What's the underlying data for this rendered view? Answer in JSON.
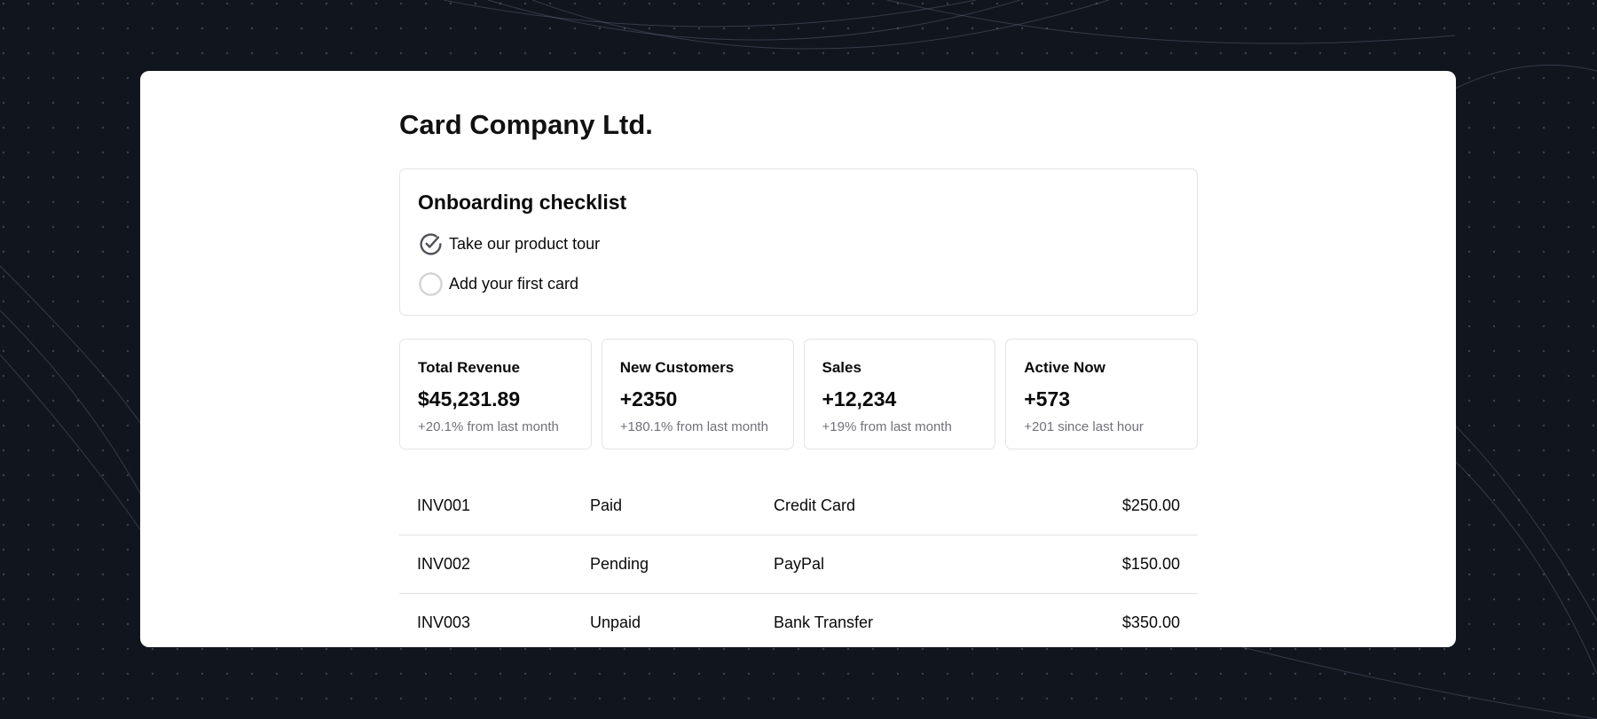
{
  "company": "Card Company Ltd.",
  "checklist": {
    "title": "Onboarding checklist",
    "items": [
      {
        "label": "Take our product tour",
        "done": true
      },
      {
        "label": "Add your first card",
        "done": false
      }
    ]
  },
  "stats": [
    {
      "title": "Total Revenue",
      "value": "$45,231.89",
      "sub": "+20.1% from last month"
    },
    {
      "title": "New Customers",
      "value": "+2350",
      "sub": "+180.1% from last month"
    },
    {
      "title": "Sales",
      "value": "+12,234",
      "sub": "+19% from last month"
    },
    {
      "title": "Active Now",
      "value": "+573",
      "sub": "+201 since last hour"
    }
  ],
  "invoices": [
    {
      "id": "INV001",
      "status": "Paid",
      "method": "Credit Card",
      "amount": "$250.00"
    },
    {
      "id": "INV002",
      "status": "Pending",
      "method": "PayPal",
      "amount": "$150.00"
    },
    {
      "id": "INV003",
      "status": "Unpaid",
      "method": "Bank Transfer",
      "amount": "$350.00"
    }
  ]
}
